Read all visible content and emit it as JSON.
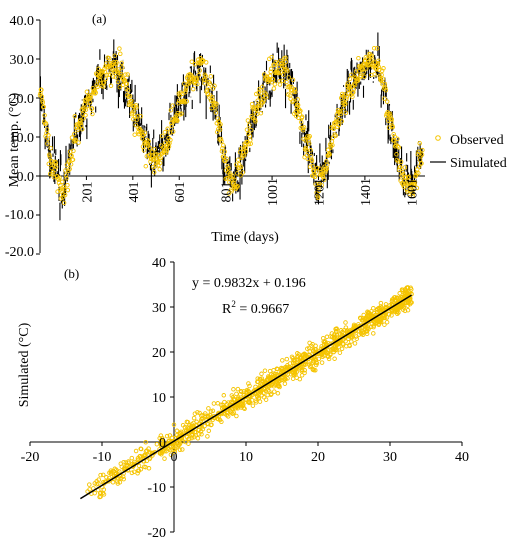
{
  "chart_data": [
    {
      "panel_label": "(a)",
      "type": "scatter",
      "xlabel": "Time (days)",
      "ylabel": "Mean temp. (°C)",
      "xlim": [
        1,
        1660
      ],
      "ylim": [
        -20,
        40
      ],
      "x_ticks": [
        201,
        401,
        601,
        801,
        1001,
        1201,
        1401,
        1601
      ],
      "x_tick_labels": [
        "201",
        "401",
        "601",
        "801",
        "1001",
        "1201",
        "1401",
        "1601"
      ],
      "y_ticks": [
        -20,
        -10,
        0,
        10,
        20,
        30,
        40
      ],
      "y_tick_labels": [
        "-20.0",
        "-10.0",
        "0.0",
        "10.0",
        "20.0",
        "30.0",
        "40.0"
      ],
      "grid": false,
      "legend_position": "right",
      "colors": {
        "observed": "#f5c400",
        "simulated": "#000000"
      },
      "series": [
        {
          "name": "Observed",
          "marker": "open-circle",
          "description": "daily observed mean temperature (dense scatter)",
          "x": [
            1,
            50,
            100,
            150,
            200,
            250,
            300,
            330,
            360,
            400,
            450,
            500,
            550,
            600,
            650,
            700,
            750,
            790,
            830,
            880,
            930,
            980,
            1030,
            1060,
            1100,
            1150,
            1200,
            1230,
            1280,
            1330,
            1380,
            1420,
            1460,
            1510,
            1560,
            1610,
            1640
          ],
          "values": [
            22,
            3,
            -5,
            10,
            18,
            24,
            28,
            29,
            26,
            18,
            8,
            3,
            10,
            18,
            25,
            28,
            20,
            5,
            -3,
            6,
            17,
            24,
            28,
            27,
            20,
            8,
            -2,
            2,
            14,
            22,
            27,
            30,
            28,
            15,
            0,
            -4,
            6
          ]
        },
        {
          "name": "Simulated",
          "marker": "line",
          "description": "daily simulated mean temperature (dense line)",
          "x": [
            1,
            50,
            100,
            150,
            200,
            250,
            300,
            330,
            360,
            400,
            450,
            500,
            550,
            600,
            650,
            700,
            750,
            790,
            830,
            880,
            930,
            980,
            1030,
            1060,
            1100,
            1150,
            1200,
            1230,
            1280,
            1330,
            1380,
            1420,
            1460,
            1510,
            1560,
            1610,
            1640
          ],
          "values": [
            21,
            4,
            -4,
            10,
            18,
            24,
            27,
            28,
            26,
            18,
            9,
            4,
            10,
            18,
            24,
            27,
            20,
            6,
            -2,
            6,
            17,
            23,
            27,
            27,
            20,
            9,
            -1,
            3,
            14,
            22,
            27,
            29,
            28,
            15,
            1,
            -3,
            6
          ]
        }
      ]
    },
    {
      "panel_label": "(b)",
      "type": "scatter",
      "xlabel": "",
      "ylabel": "Simulated (°C)",
      "xlim": [
        -20,
        40
      ],
      "ylim": [
        -20,
        40
      ],
      "x_ticks": [
        -20,
        -10,
        0,
        10,
        20,
        30,
        40
      ],
      "x_tick_labels": [
        "-20",
        "-10",
        "0",
        "10",
        "20",
        "30",
        "40"
      ],
      "y_ticks": [
        -20,
        -10,
        0,
        10,
        20,
        30,
        40
      ],
      "y_tick_labels": [
        "-20",
        "-10",
        "0",
        "10",
        "20",
        "30",
        "40"
      ],
      "grid": false,
      "colors": {
        "points": "#f5c400",
        "fit": "#000000"
      },
      "equation": "y = 0.9832x + 0.196",
      "r2_label": "R",
      "r2_sup": "2",
      "r2_value": " = 0.9667",
      "fit": {
        "slope": 0.9832,
        "intercept": 0.196,
        "x_range": [
          -13,
          33
        ]
      },
      "series": [
        {
          "name": "",
          "marker": "open-circle",
          "x": [
            -12,
            -9,
            -7,
            -5,
            -3,
            -1,
            1,
            3,
            5,
            7,
            9,
            11,
            13,
            15,
            17,
            19,
            21,
            23,
            25,
            27,
            29,
            31,
            33
          ],
          "values": [
            -11,
            -8,
            -7,
            -4,
            -3,
            -1,
            1,
            3,
            5,
            7,
            9,
            11,
            13,
            15,
            17,
            19,
            21,
            23,
            25,
            27,
            28,
            30,
            31
          ]
        }
      ]
    }
  ]
}
